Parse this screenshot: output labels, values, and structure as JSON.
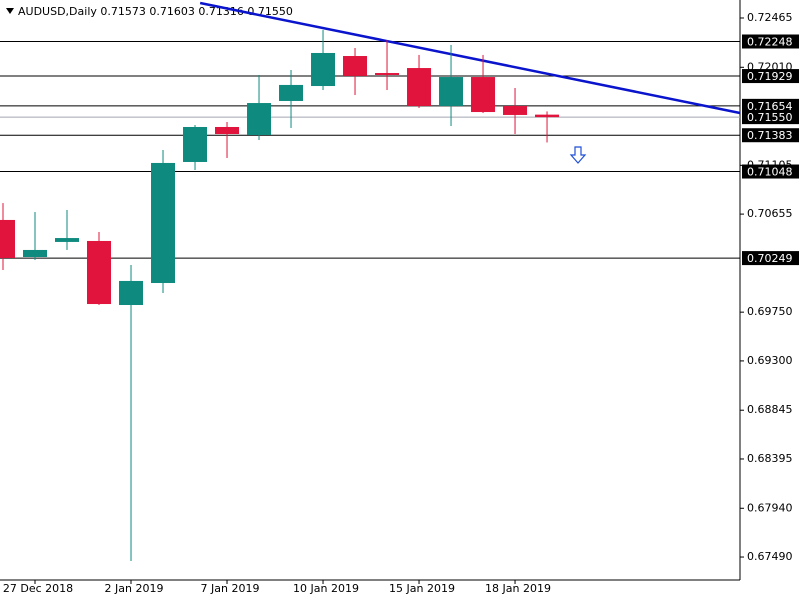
{
  "chart_data": {
    "type": "candlestick",
    "title": "AUDUSD,Daily 0.71573 0.71603 0.71316 0.71550",
    "categories": [
      null,
      "27 Dec 2018",
      null,
      null,
      "2 Jan 2019",
      null,
      null,
      "7 Jan 2019",
      null,
      null,
      "10 Jan 2019",
      null,
      null,
      "15 Jan 2019",
      null,
      null,
      "18 Jan 2019",
      null
    ],
    "open": [
      0.70601,
      0.70259,
      0.70398,
      0.70407,
      0.69816,
      0.70019,
      0.71136,
      0.71459,
      0.71385,
      0.71699,
      0.71837,
      0.72114,
      0.71957,
      0.72003,
      0.71653,
      0.7192,
      0.71653,
      0.71573
    ],
    "high": [
      0.70757,
      0.70674,
      0.70693,
      0.7049,
      0.70185,
      0.71247,
      0.71477,
      0.71505,
      0.71939,
      0.71985,
      0.72354,
      0.72188,
      0.72262,
      0.72124,
      0.72216,
      0.72124,
      0.71819,
      0.71603
    ],
    "low": [
      0.70139,
      0.70231,
      0.70324,
      0.69816,
      0.67453,
      0.69927,
      0.71062,
      0.71173,
      0.71339,
      0.7145,
      0.718,
      0.71754,
      0.718,
      0.71634,
      0.71468,
      0.71588,
      0.71394,
      0.71316
    ],
    "close": [
      0.7025,
      0.70324,
      0.70434,
      0.69825,
      0.70038,
      0.71127,
      0.71459,
      0.71394,
      0.7168,
      0.71847,
      0.72142,
      0.7193,
      0.71939,
      0.71653,
      0.7192,
      0.71597,
      0.7157,
      0.7155
    ],
    "up_color": "#0f8a7e",
    "down_color": "#e0143c",
    "xlim": [
      -0.094,
      23.03
    ],
    "ylim": [
      0.67278,
      0.72631
    ],
    "yticks": [
      0.72465,
      {
        "value": 0.7201,
        "label": "0.72010"
      },
      0.71105,
      0.70655,
      {
        "value": 0.6975,
        "label": "0.69750"
      },
      {
        "value": 0.693,
        "label": "0.69300"
      },
      0.68845,
      0.68395,
      {
        "value": 0.6794,
        "label": "0.67940"
      },
      {
        "value": 0.6749,
        "label": "0.67490"
      }
    ],
    "levels": [
      0.72248,
      0.71929,
      0.71654,
      0.71383,
      0.71048,
      0.70249
    ],
    "level_color": "#000000",
    "current_price": {
      "value": 0.7155,
      "label": "0.71550"
    },
    "current_price_color": "#a0a8b0",
    "trendline": {
      "x": [
        6.16,
        23.03
      ],
      "y": [
        0.72603,
        0.71588
      ],
      "color": "#0a14cc"
    }
  }
}
